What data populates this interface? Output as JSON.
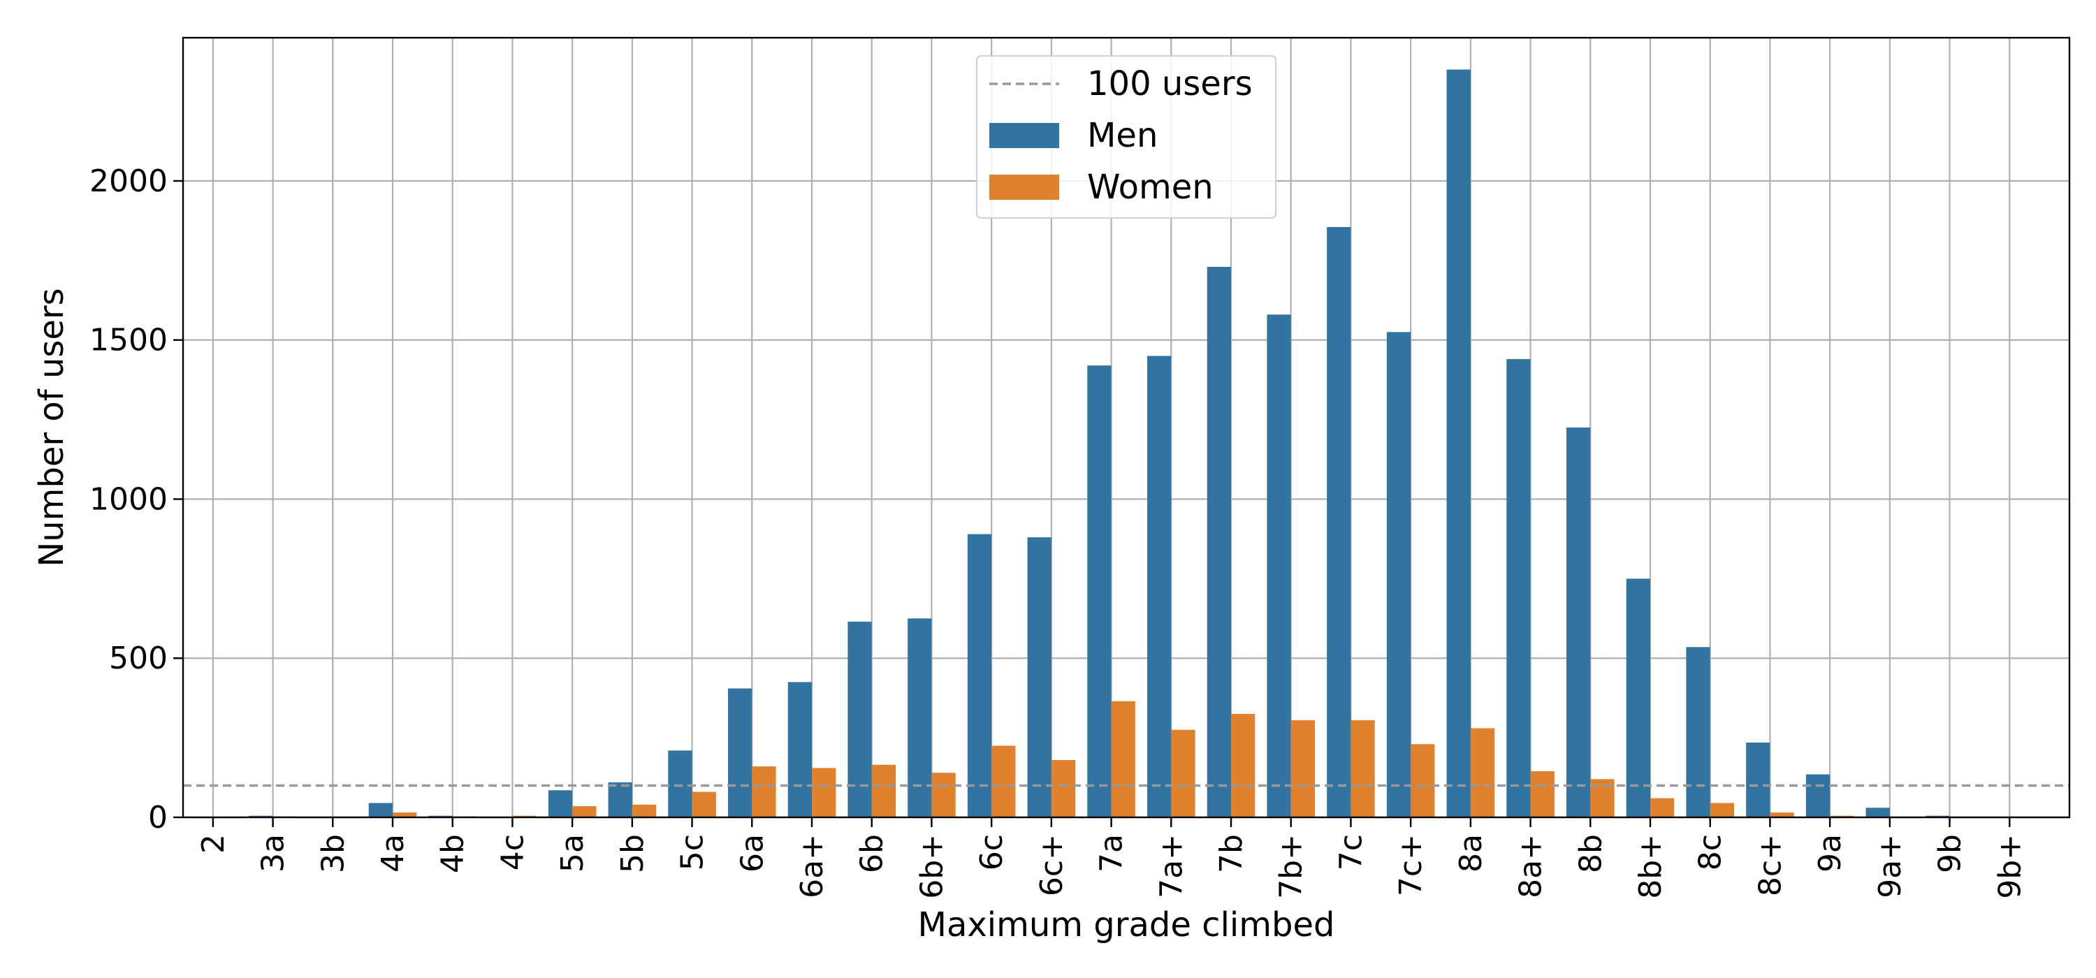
{
  "chart_data": {
    "type": "bar",
    "xlabel": "Maximum grade climbed",
    "ylabel": "Number of users",
    "ylim": [
      0,
      2450
    ],
    "yticks": [
      0,
      500,
      1000,
      1500,
      2000
    ],
    "grid": true,
    "legend_position": "top-center",
    "categories": [
      "2",
      "3a",
      "3b",
      "4a",
      "4b",
      "4c",
      "5a",
      "5b",
      "5c",
      "6a",
      "6a+",
      "6b",
      "6b+",
      "6c",
      "6c+",
      "7a",
      "7a+",
      "7b",
      "7b+",
      "7c",
      "7c+",
      "8a",
      "8a+",
      "8b",
      "8b+",
      "8c",
      "8c+",
      "9a",
      "9a+",
      "9b",
      "9b+"
    ],
    "series": [
      {
        "name": "Men",
        "color": "#3274a1",
        "values": [
          0,
          5,
          2,
          45,
          5,
          2,
          85,
          110,
          210,
          405,
          425,
          615,
          625,
          890,
          880,
          1420,
          1450,
          1730,
          1580,
          1855,
          1525,
          2350,
          1440,
          1225,
          750,
          535,
          235,
          135,
          30,
          5,
          0
        ]
      },
      {
        "name": "Women",
        "color": "#e1812c",
        "values": [
          0,
          3,
          1,
          15,
          3,
          5,
          35,
          40,
          80,
          160,
          155,
          165,
          140,
          225,
          180,
          365,
          275,
          325,
          305,
          305,
          230,
          280,
          145,
          120,
          60,
          45,
          15,
          5,
          1,
          1,
          0
        ]
      }
    ],
    "reference_line": {
      "label": "100 users",
      "y": 100,
      "color": "#999999"
    }
  }
}
